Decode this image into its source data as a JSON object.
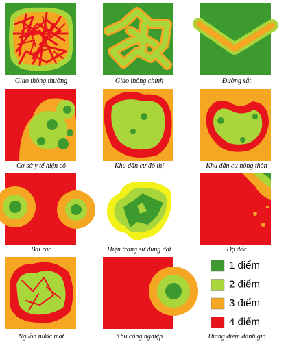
{
  "panels": [
    {
      "caption": "Giao thông thường"
    },
    {
      "caption": "Giao thông chính"
    },
    {
      "caption": "Đường sắt"
    },
    {
      "caption": "Cơ sở y tế hiện có"
    },
    {
      "caption": "Khu dân cư đô thị"
    },
    {
      "caption": "Khu dân cư nông thôn"
    },
    {
      "caption": "Bãi rác"
    },
    {
      "caption": "Hiện trạng sử dụng đất"
    },
    {
      "caption": "Độ dốc"
    },
    {
      "caption": "Nguồn nước mặt"
    },
    {
      "caption": "Khu công nghiệp"
    }
  ],
  "legend": {
    "caption": "Thang điểm đánh giá",
    "items": [
      {
        "label": "1 điểm",
        "color": "#3c9a2f"
      },
      {
        "label": "2 điểm",
        "color": "#a9d63b"
      },
      {
        "label": "3 điểm",
        "color": "#f5a623"
      },
      {
        "label": "4 điểm",
        "color": "#e8141c"
      }
    ]
  }
}
